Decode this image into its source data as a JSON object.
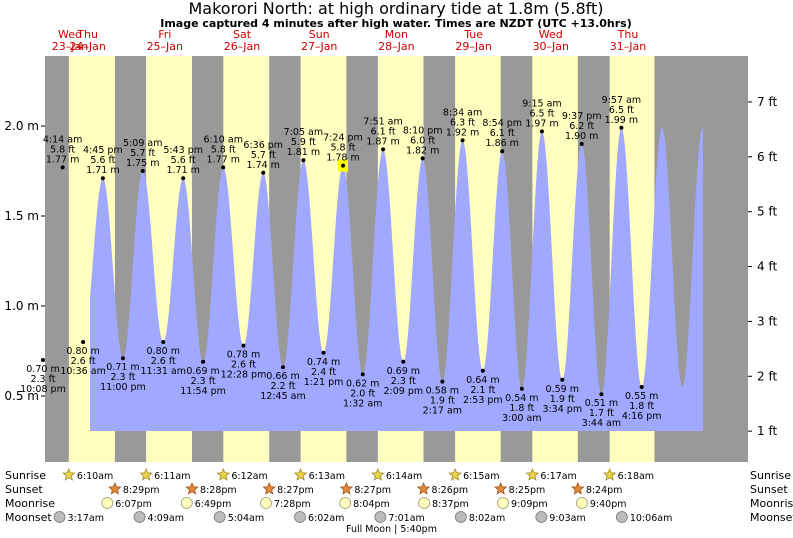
{
  "header": {
    "title": "Makorori North: at high  ordinary tide at 1.8m (5.8ft)",
    "subtitle": "Image captured 4 minutes after high water. Times are NZDT (UTC +13.0hrs)"
  },
  "colors": {
    "night": "#999999",
    "day": "#ffffc0",
    "water": "#a0a8ff",
    "current_marker": "#ffff00"
  },
  "chart_data": {
    "type": "area",
    "title": "Makorori North: at high  ordinary tide at 1.8m (5.8ft)",
    "y_left_ticks": [
      {
        "v": 0.5,
        "label": "0.5 m"
      },
      {
        "v": 1.0,
        "label": "1.0 m"
      },
      {
        "v": 1.5,
        "label": "1.5 m"
      },
      {
        "v": 2.0,
        "label": "2.0 m"
      }
    ],
    "y_right_ticks": [
      {
        "v": 0.3048,
        "label": "1 ft"
      },
      {
        "v": 0.6096,
        "label": "2 ft"
      },
      {
        "v": 0.9144,
        "label": "3 ft"
      },
      {
        "v": 1.2192,
        "label": "4 ft"
      },
      {
        "v": 1.524,
        "label": "5 ft"
      },
      {
        "v": 1.8288,
        "label": "6 ft"
      },
      {
        "v": 2.1336,
        "label": "7 ft"
      }
    ],
    "days": [
      {
        "dow": "Wed",
        "date": "23–Jan"
      },
      {
        "dow": "Thu",
        "date": "24–Jan"
      },
      {
        "dow": "Fri",
        "date": "25–Jan"
      },
      {
        "dow": "Sat",
        "date": "26–Jan"
      },
      {
        "dow": "Sun",
        "date": "27–Jan"
      },
      {
        "dow": "Mon",
        "date": "28–Jan"
      },
      {
        "dow": "Tue",
        "date": "29–Jan"
      },
      {
        "dow": "Wed",
        "date": "30–Jan"
      },
      {
        "dow": "Thu",
        "date": "31–Jan"
      }
    ],
    "daylight": [
      {
        "day": "24–Jan",
        "sunrise": "6:10am",
        "sunset": "8:29pm"
      },
      {
        "day": "25–Jan",
        "sunrise": "6:11am",
        "sunset": "8:28pm"
      },
      {
        "day": "26–Jan",
        "sunrise": "6:12am",
        "sunset": "8:27pm"
      },
      {
        "day": "27–Jan",
        "sunrise": "6:13am",
        "sunset": "8:27pm"
      },
      {
        "day": "28–Jan",
        "sunrise": "6:14am",
        "sunset": "8:26pm"
      },
      {
        "day": "29–Jan",
        "sunrise": "6:15am",
        "sunset": "8:25pm"
      },
      {
        "day": "30–Jan",
        "sunrise": "6:17am",
        "sunset": "8:24pm"
      },
      {
        "day": "31–Jan",
        "sunrise": "6:18am"
      }
    ],
    "tides": [
      {
        "type": "low",
        "day": "23–Jan",
        "time": "10:08 pm",
        "m": 0.7,
        "ft": "2.3 ft"
      },
      {
        "type": "high",
        "day": "24–Jan",
        "time": "4:14 am",
        "m": 1.77,
        "ft": "5.8 ft"
      },
      {
        "type": "low",
        "day": "24–Jan",
        "time": "10:36 am",
        "m": 0.8,
        "ft": "2.6 ft"
      },
      {
        "type": "high",
        "day": "24–Jan",
        "time": "4:45 pm",
        "m": 1.71,
        "ft": "5.6 ft"
      },
      {
        "type": "low",
        "day": "24–Jan",
        "time": "11:00 pm",
        "m": 0.71,
        "ft": "2.3 ft"
      },
      {
        "type": "high",
        "day": "25–Jan",
        "time": "5:09 am",
        "m": 1.75,
        "ft": "5.7 ft"
      },
      {
        "type": "low",
        "day": "25–Jan",
        "time": "11:31 am",
        "m": 0.8,
        "ft": "2.6 ft"
      },
      {
        "type": "high",
        "day": "25–Jan",
        "time": "5:43 pm",
        "m": 1.71,
        "ft": "5.6 ft"
      },
      {
        "type": "low",
        "day": "25–Jan",
        "time": "11:54 pm",
        "m": 0.69,
        "ft": "2.3 ft"
      },
      {
        "type": "high",
        "day": "26–Jan",
        "time": "6:10 am",
        "m": 1.77,
        "ft": "5.8 ft"
      },
      {
        "type": "low",
        "day": "26–Jan",
        "time": "12:28 pm",
        "m": 0.78,
        "ft": "2.6 ft"
      },
      {
        "type": "high",
        "day": "26–Jan",
        "time": "6:36 pm",
        "m": 1.74,
        "ft": "5.7 ft"
      },
      {
        "type": "low",
        "day": "27–Jan",
        "time": "12:45 am",
        "m": 0.66,
        "ft": "2.2 ft"
      },
      {
        "type": "high",
        "day": "27–Jan",
        "time": "7:05 am",
        "m": 1.81,
        "ft": "5.9 ft"
      },
      {
        "type": "low",
        "day": "27–Jan",
        "time": "1:21 pm",
        "m": 0.74,
        "ft": "2.4 ft"
      },
      {
        "type": "high",
        "day": "27–Jan",
        "time": "7:24 pm",
        "m": 1.78,
        "ft": "5.8 ft",
        "current": true
      },
      {
        "type": "low",
        "day": "28–Jan",
        "time": "1:32 am",
        "m": 0.62,
        "ft": "2.0 ft"
      },
      {
        "type": "high",
        "day": "28–Jan",
        "time": "7:51 am",
        "m": 1.87,
        "ft": "6.1 ft"
      },
      {
        "type": "low",
        "day": "28–Jan",
        "time": "2:09 pm",
        "m": 0.69,
        "ft": "2.3 ft"
      },
      {
        "type": "high",
        "day": "28–Jan",
        "time": "8:10 pm",
        "m": 1.82,
        "ft": "6.0 ft"
      },
      {
        "type": "low",
        "day": "29–Jan",
        "time": "2:17 am",
        "m": 0.58,
        "ft": "1.9 ft"
      },
      {
        "type": "high",
        "day": "29–Jan",
        "time": "8:34 am",
        "m": 1.92,
        "ft": "6.3 ft"
      },
      {
        "type": "low",
        "day": "29–Jan",
        "time": "2:53 pm",
        "m": 0.64,
        "ft": "2.1 ft"
      },
      {
        "type": "high",
        "day": "29–Jan",
        "time": "8:54 pm",
        "m": 1.86,
        "ft": "6.1 ft"
      },
      {
        "type": "low",
        "day": "30–Jan",
        "time": "3:00 am",
        "m": 0.54,
        "ft": "1.8 ft"
      },
      {
        "type": "high",
        "day": "30–Jan",
        "time": "9:15 am",
        "m": 1.97,
        "ft": "6.5 ft"
      },
      {
        "type": "low",
        "day": "30–Jan",
        "time": "3:34 pm",
        "m": 0.59,
        "ft": "1.9 ft"
      },
      {
        "type": "high",
        "day": "30–Jan",
        "time": "9:37 pm",
        "m": 1.9,
        "ft": "6.2 ft"
      },
      {
        "type": "low",
        "day": "31–Jan",
        "time": "3:44 am",
        "m": 0.51,
        "ft": "1.7 ft"
      },
      {
        "type": "high",
        "day": "31–Jan",
        "time": "9:57 am",
        "m": 1.99,
        "ft": "6.5 ft"
      },
      {
        "type": "low",
        "day": "31–Jan",
        "time": "4:16 pm",
        "m": 0.55,
        "ft": "1.8 ft"
      }
    ],
    "events": {
      "row_labels": {
        "sunrise": "Sunrise",
        "sunset": "Sunset",
        "moonrise": "Moonrise",
        "moonset": "Moonset"
      },
      "sunrise": [
        {
          "day": "24–Jan",
          "time": "6:10am"
        },
        {
          "day": "25–Jan",
          "time": "6:11am"
        },
        {
          "day": "26–Jan",
          "time": "6:12am"
        },
        {
          "day": "27–Jan",
          "time": "6:13am"
        },
        {
          "day": "28–Jan",
          "time": "6:14am"
        },
        {
          "day": "29–Jan",
          "time": "6:15am"
        },
        {
          "day": "30–Jan",
          "time": "6:17am"
        },
        {
          "day": "31–Jan",
          "time": "6:18am"
        }
      ],
      "sunset": [
        {
          "day": "24–Jan",
          "time": "8:29pm"
        },
        {
          "day": "25–Jan",
          "time": "8:28pm"
        },
        {
          "day": "26–Jan",
          "time": "8:27pm"
        },
        {
          "day": "27–Jan",
          "time": "8:27pm"
        },
        {
          "day": "28–Jan",
          "time": "8:26pm"
        },
        {
          "day": "29–Jan",
          "time": "8:25pm"
        },
        {
          "day": "30–Jan",
          "time": "8:24pm"
        }
      ],
      "moonrise": [
        {
          "day": "24–Jan",
          "time": "6:07pm"
        },
        {
          "day": "25–Jan",
          "time": "6:49pm"
        },
        {
          "day": "26–Jan",
          "time": "7:28pm"
        },
        {
          "day": "27–Jan",
          "time": "8:04pm"
        },
        {
          "day": "28–Jan",
          "time": "8:37pm"
        },
        {
          "day": "29–Jan",
          "time": "9:09pm"
        },
        {
          "day": "30–Jan",
          "time": "9:40pm"
        }
      ],
      "moonset": [
        {
          "day": "24–Jan",
          "time": "3:17am"
        },
        {
          "day": "25–Jan",
          "time": "4:09am"
        },
        {
          "day": "26–Jan",
          "time": "5:04am"
        },
        {
          "day": "27–Jan",
          "time": "6:02am"
        },
        {
          "day": "28–Jan",
          "time": "7:01am"
        },
        {
          "day": "29–Jan",
          "time": "8:02am"
        },
        {
          "day": "30–Jan",
          "time": "9:03am"
        },
        {
          "day": "31–Jan",
          "time": "10:06am"
        }
      ],
      "moon_phase": {
        "day": "27–Jan",
        "time": "5:40pm",
        "label": "Full Moon | 5:40pm"
      }
    }
  }
}
